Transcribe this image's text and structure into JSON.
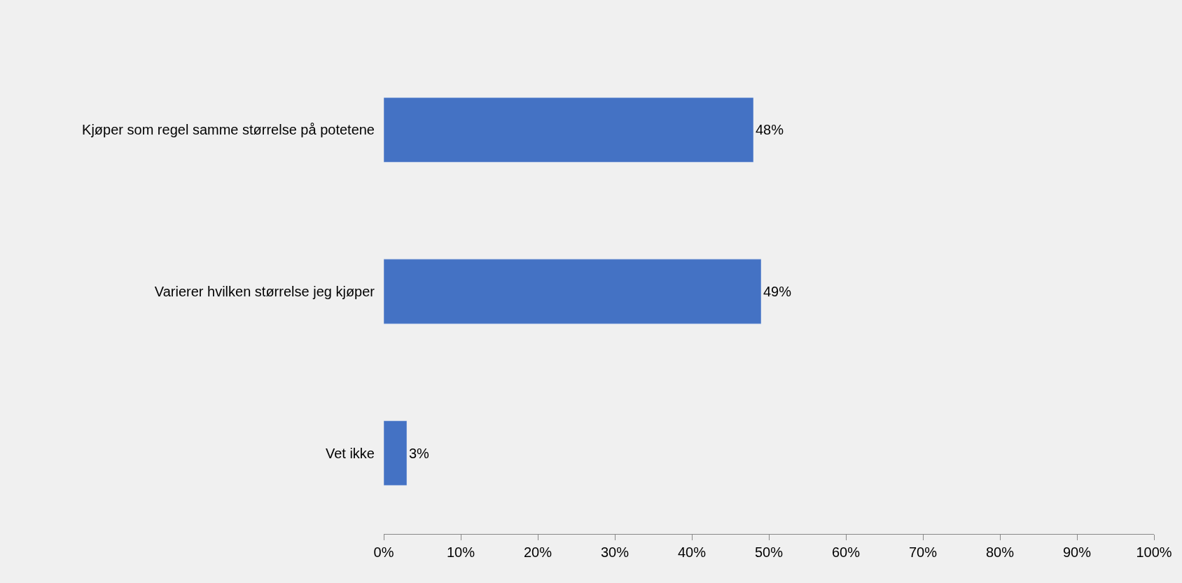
{
  "chart_data": {
    "type": "bar",
    "orientation": "horizontal",
    "categories": [
      "Kjøper som regel samme størrelse på potetene",
      "Varierer hvilken størrelse jeg kjøper",
      "Vet ikke"
    ],
    "values": [
      48,
      49,
      3
    ],
    "value_labels": [
      "48%",
      "49%",
      "3%"
    ],
    "color": "#4472c4",
    "xlim": [
      0,
      100
    ],
    "xticks": [
      {
        "value": 0,
        "label": "0%"
      },
      {
        "value": 10,
        "label": "10%"
      },
      {
        "value": 20,
        "label": "20%"
      },
      {
        "value": 30,
        "label": "30%"
      },
      {
        "value": 40,
        "label": "40%"
      },
      {
        "value": 50,
        "label": "50%"
      },
      {
        "value": 60,
        "label": "60%"
      },
      {
        "value": 70,
        "label": "70%"
      },
      {
        "value": 80,
        "label": "80%"
      },
      {
        "value": 90,
        "label": "90%"
      },
      {
        "value": 100,
        "label": "100%"
      }
    ],
    "grid": false,
    "legend": false
  }
}
